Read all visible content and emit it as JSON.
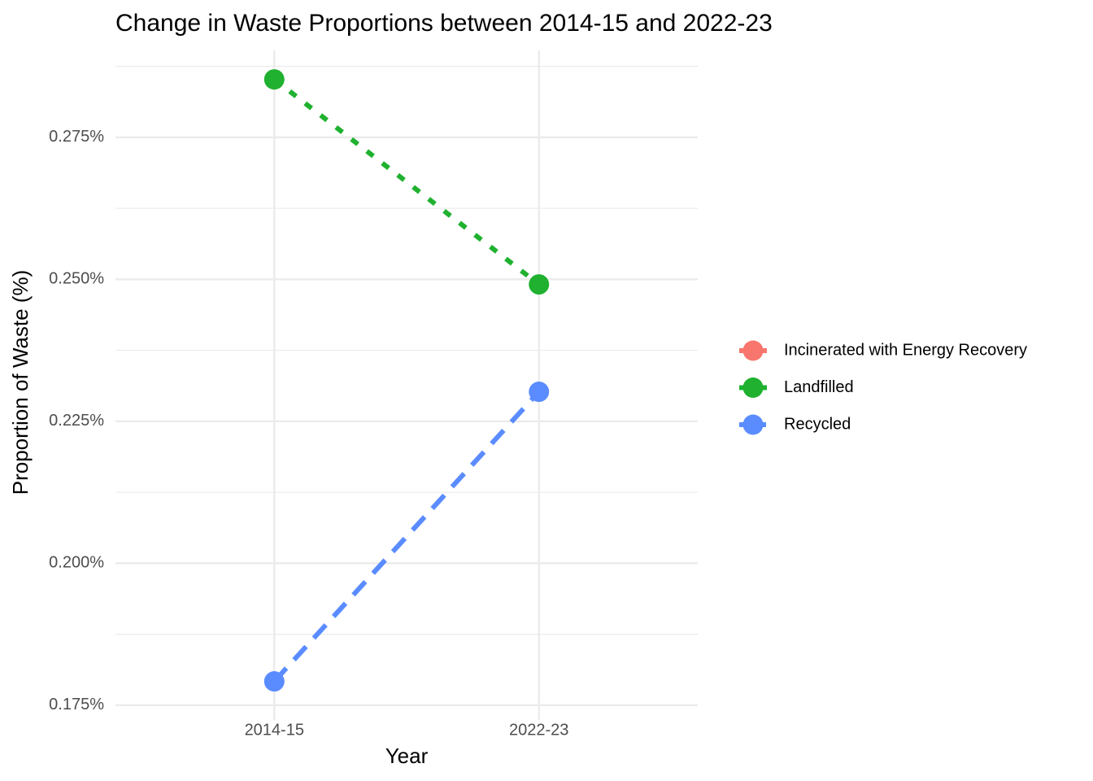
{
  "chart_data": {
    "type": "line",
    "title": "Change in Waste Proportions between 2014-15 and 2022-23",
    "x_label": "Year",
    "y_label": "Proportion of Waste (%)",
    "categories": [
      "2014-15",
      "2022-23"
    ],
    "series": [
      {
        "name": "Incinerated with Energy Recovery",
        "color": "#F8766D",
        "linetype": "solid",
        "values": [
          null,
          null
        ]
      },
      {
        "name": "Landfilled",
        "color": "#1FB12F",
        "linetype": "dotted",
        "values": [
          0.2852,
          0.2491
        ]
      },
      {
        "name": "Recycled",
        "color": "#5A8CFF",
        "linetype": "dashed",
        "values": [
          0.1792,
          0.2302
        ]
      }
    ],
    "ylim": [
      0.1724,
      0.2903
    ],
    "yticks": [
      {
        "value": 0.175,
        "label": "0.175%"
      },
      {
        "value": 0.2,
        "label": "0.200%"
      },
      {
        "value": 0.225,
        "label": "0.225%"
      },
      {
        "value": 0.25,
        "label": "0.250%"
      },
      {
        "value": 0.275,
        "label": "0.275%"
      }
    ],
    "grid": true,
    "legend": "right"
  }
}
